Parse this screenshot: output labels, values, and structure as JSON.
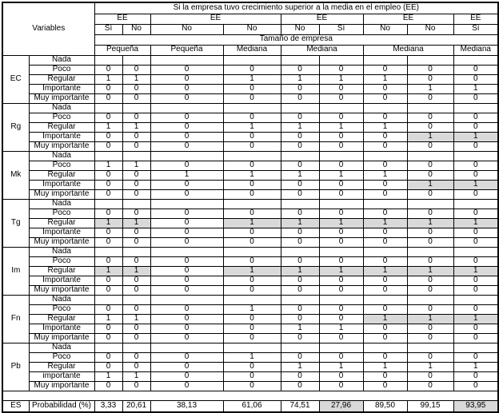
{
  "table": {
    "title": "Si la empresa tuvo crecimiento superior a la media en el empleo (EE)",
    "variables_label": "Variables",
    "size_header": "Tamaño de empresa",
    "highlight_color": "#d9d9d9",
    "ee_groups": [
      {
        "label": "EE",
        "answers": [
          "Sí",
          "No"
        ]
      },
      {
        "label": "EE",
        "answers": [
          "No",
          "No"
        ]
      },
      {
        "label": "EE",
        "answers": [
          "No",
          "Sí"
        ]
      },
      {
        "label": "EE",
        "answers": [
          "No",
          "No"
        ]
      },
      {
        "label": "EE",
        "answers": [
          "Sí"
        ]
      }
    ],
    "sizes": [
      {
        "label": "Pequeña",
        "span": 2
      },
      {
        "label": "Pequeña",
        "span": 1
      },
      {
        "label": "Mediana",
        "span": 1
      },
      {
        "label": "Mediana",
        "span": 2
      },
      {
        "label": "Mediana",
        "span": 2
      },
      {
        "label": "Mediana",
        "span": 1
      }
    ],
    "groups": [
      {
        "name": "EC",
        "rows": [
          {
            "label": "Nada",
            "values": [
              "",
              "",
              "",
              "",
              "",
              "",
              "",
              "",
              ""
            ],
            "hl": []
          },
          {
            "label": "Poco",
            "values": [
              "0",
              "0",
              "0",
              "0",
              "0",
              "0",
              "0",
              "0",
              "0"
            ],
            "hl": []
          },
          {
            "label": "Regular",
            "values": [
              "1",
              "1",
              "0",
              "1",
              "1",
              "1",
              "1",
              "0",
              "0"
            ],
            "hl": []
          },
          {
            "label": "Importante",
            "values": [
              "0",
              "0",
              "0",
              "0",
              "0",
              "0",
              "0",
              "1",
              "1"
            ],
            "hl": []
          },
          {
            "label": "Muy importante",
            "values": [
              "0",
              "0",
              "0",
              "0",
              "0",
              "0",
              "0",
              "0",
              "0"
            ],
            "hl": []
          }
        ]
      },
      {
        "name": "Rg",
        "rows": [
          {
            "label": "Nada",
            "values": [
              "",
              "",
              "",
              "",
              "",
              "",
              "",
              "",
              ""
            ],
            "hl": []
          },
          {
            "label": "Poco",
            "values": [
              "0",
              "0",
              "0",
              "0",
              "0",
              "0",
              "0",
              "0",
              "0"
            ],
            "hl": []
          },
          {
            "label": "Regular",
            "values": [
              "1",
              "1",
              "0",
              "1",
              "1",
              "1",
              "1",
              "0",
              "0"
            ],
            "hl": []
          },
          {
            "label": "Importante",
            "values": [
              "0",
              "0",
              "0",
              "0",
              "0",
              "0",
              "0",
              "1",
              "1"
            ],
            "hl": [
              7,
              8
            ]
          },
          {
            "label": "Muy importante",
            "values": [
              "0",
              "0",
              "0",
              "0",
              "0",
              "0",
              "0",
              "0",
              "0"
            ],
            "hl": []
          }
        ]
      },
      {
        "name": "Mk",
        "rows": [
          {
            "label": "Nada",
            "values": [
              "",
              "",
              "",
              "",
              "",
              "",
              "",
              "",
              ""
            ],
            "hl": []
          },
          {
            "label": "Poco",
            "values": [
              "1",
              "1",
              "0",
              "0",
              "0",
              "0",
              "0",
              "0",
              "0"
            ],
            "hl": []
          },
          {
            "label": "Regular",
            "values": [
              "0",
              "0",
              "1",
              "1",
              "1",
              "1",
              "1",
              "0",
              "0"
            ],
            "hl": []
          },
          {
            "label": "Importante",
            "values": [
              "0",
              "0",
              "0",
              "0",
              "0",
              "0",
              "0",
              "1",
              "1"
            ],
            "hl": [
              7,
              8
            ]
          },
          {
            "label": "Muy importante",
            "values": [
              "0",
              "0",
              "0",
              "0",
              "0",
              "0",
              "0",
              "0",
              "0"
            ],
            "hl": []
          }
        ]
      },
      {
        "name": "Tg",
        "rows": [
          {
            "label": "Nada",
            "values": [
              "",
              "",
              "",
              "",
              "",
              "",
              "",
              "",
              ""
            ],
            "hl": []
          },
          {
            "label": "Poco",
            "values": [
              "0",
              "0",
              "0",
              "0",
              "0",
              "0",
              "0",
              "0",
              "0"
            ],
            "hl": []
          },
          {
            "label": "Regular",
            "values": [
              "1",
              "1",
              "0",
              "1",
              "1",
              "1",
              "1",
              "1",
              "1"
            ],
            "hl": [
              0,
              1,
              3,
              4,
              5,
              6,
              7,
              8
            ]
          },
          {
            "label": "Importante",
            "values": [
              "0",
              "0",
              "0",
              "0",
              "0",
              "0",
              "0",
              "0",
              "0"
            ],
            "hl": []
          },
          {
            "label": "Muy importante",
            "values": [
              "0",
              "0",
              "0",
              "0",
              "0",
              "0",
              "0",
              "0",
              "0"
            ],
            "hl": []
          }
        ]
      },
      {
        "name": "Im",
        "rows": [
          {
            "label": "Nada",
            "values": [
              "",
              "",
              "",
              "",
              "",
              "",
              "",
              "",
              ""
            ],
            "hl": []
          },
          {
            "label": "Poco",
            "values": [
              "0",
              "0",
              "0",
              "0",
              "0",
              "0",
              "0",
              "0",
              "0"
            ],
            "hl": []
          },
          {
            "label": "Regular",
            "values": [
              "1",
              "1",
              "0",
              "1",
              "1",
              "1",
              "1",
              "1",
              "1"
            ],
            "hl": [
              0,
              1,
              3,
              4,
              5,
              6,
              7,
              8
            ]
          },
          {
            "label": "Importante",
            "values": [
              "0",
              "0",
              "0",
              "0",
              "0",
              "0",
              "0",
              "0",
              "0"
            ],
            "hl": []
          },
          {
            "label": "Muy importante",
            "values": [
              "0",
              "0",
              "0",
              "0",
              "0",
              "0",
              "0",
              "0",
              "0"
            ],
            "hl": []
          }
        ]
      },
      {
        "name": "Fn",
        "rows": [
          {
            "label": "Nada",
            "values": [
              "",
              "",
              "",
              "",
              "",
              "",
              "",
              "",
              ""
            ],
            "hl": []
          },
          {
            "label": "Poco",
            "values": [
              "0",
              "0",
              "0",
              "1",
              "0",
              "0",
              "0",
              "0",
              "0"
            ],
            "hl": []
          },
          {
            "label": "Regular",
            "values": [
              "1",
              "1",
              "0",
              "0",
              "0",
              "0",
              "1",
              "1",
              "1"
            ],
            "hl": [
              6,
              7,
              8
            ]
          },
          {
            "label": "Importante",
            "values": [
              "0",
              "0",
              "0",
              "0",
              "1",
              "1",
              "0",
              "0",
              "0"
            ],
            "hl": []
          },
          {
            "label": "Muy importante",
            "values": [
              "0",
              "0",
              "0",
              "0",
              "0",
              "0",
              "0",
              "0",
              "0"
            ],
            "hl": []
          }
        ]
      },
      {
        "name": "Pb",
        "rows": [
          {
            "label": "Nada",
            "values": [
              "",
              "",
              "",
              "",
              "",
              "",
              "",
              "",
              ""
            ],
            "hl": []
          },
          {
            "label": "Poco",
            "values": [
              "0",
              "0",
              "0",
              "1",
              "0",
              "0",
              "0",
              "0",
              "0"
            ],
            "hl": []
          },
          {
            "label": "Regular",
            "values": [
              "0",
              "0",
              "0",
              "0",
              "1",
              "1",
              "1",
              "1",
              "1"
            ],
            "hl": []
          },
          {
            "label": "importante",
            "values": [
              "1",
              "1",
              "0",
              "0",
              "0",
              "0",
              "0",
              "0",
              "0"
            ],
            "hl": []
          },
          {
            "label": "Muy importante",
            "values": [
              "0",
              "0",
              "0",
              "0",
              "0",
              "0",
              "0",
              "0",
              "0"
            ],
            "hl": []
          }
        ]
      }
    ],
    "footer": {
      "group": "ES",
      "label": "Probabilidad (%)",
      "values": [
        "3,33",
        "20,61",
        "38,13",
        "61,06",
        "74,51",
        "27,96",
        "89,50",
        "99,15",
        "93,95"
      ],
      "hl": [
        5,
        8
      ]
    }
  }
}
